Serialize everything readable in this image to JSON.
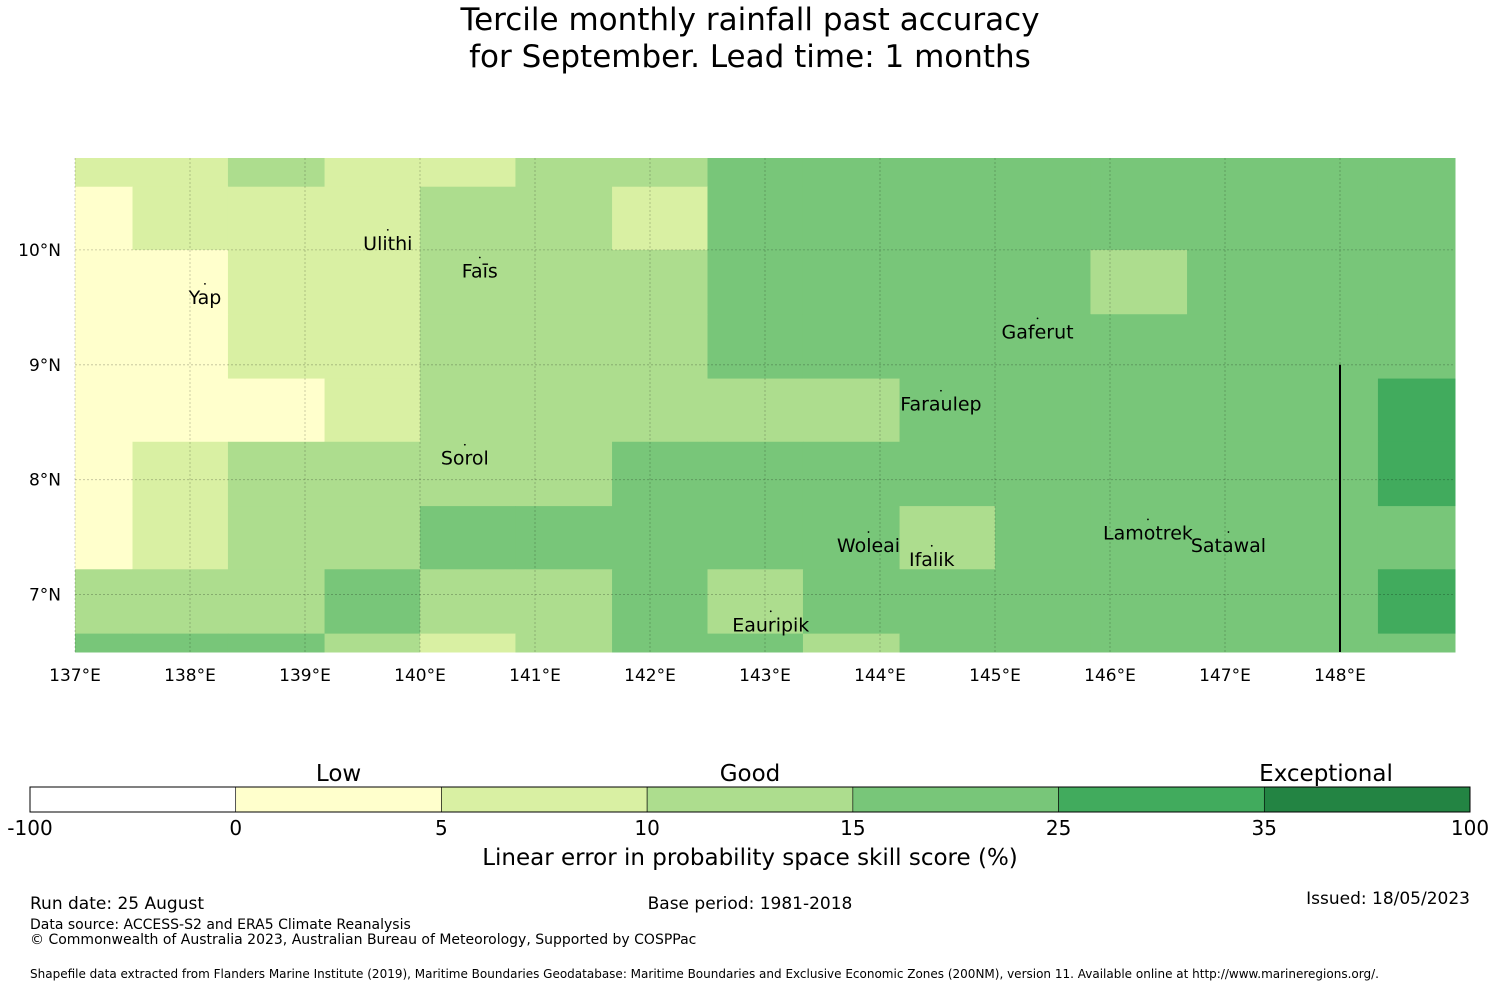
{
  "title": {
    "line1": "Tercile monthly rainfall past accuracy",
    "line2": "for September. Lead time: 1 months"
  },
  "colors": {
    "below_0": "#ffffff",
    "0_5": "#ffffcc",
    "5_10": "#d9f0a3",
    "10_15": "#addd8e",
    "15_25": "#78c679",
    "25_35": "#41ab5d",
    "35_100": "#238443"
  },
  "chart_data": {
    "type": "heatmap",
    "lon_range": [
      137.0,
      149.0
    ],
    "lat_range": [
      6.5,
      10.8
    ],
    "x_ticks": [
      "137°E",
      "138°E",
      "139°E",
      "140°E",
      "141°E",
      "142°E",
      "143°E",
      "144°E",
      "145°E",
      "146°E",
      "147°E",
      "148°E"
    ],
    "y_ticks": [
      "10°N",
      "9°N",
      "8°N",
      "7°N"
    ],
    "grid": true,
    "columns_lon": [
      137.0,
      137.5,
      138.33,
      139.17,
      140.0,
      140.83,
      141.67,
      142.5,
      143.33,
      144.17,
      145.0,
      145.83,
      146.67,
      147.5,
      148.33,
      149.0
    ],
    "rows_lat": [
      10.8,
      10.55,
      10.0,
      9.44,
      8.88,
      8.33,
      7.77,
      7.22,
      6.66,
      6.5
    ],
    "cells": [
      [
        "5_10",
        "5_10",
        "10_15",
        "5_10",
        "5_10",
        "10_15",
        "10_15",
        "15_25",
        "15_25",
        "15_25",
        "15_25",
        "15_25",
        "15_25",
        "15_25",
        "15_25"
      ],
      [
        "0_5",
        "5_10",
        "5_10",
        "5_10",
        "10_15",
        "10_15",
        "5_10",
        "15_25",
        "15_25",
        "15_25",
        "15_25",
        "15_25",
        "15_25",
        "15_25",
        "15_25"
      ],
      [
        "0_5",
        "0_5",
        "5_10",
        "5_10",
        "10_15",
        "10_15",
        "10_15",
        "15_25",
        "15_25",
        "15_25",
        "15_25",
        "10_15",
        "15_25",
        "15_25",
        "15_25"
      ],
      [
        "0_5",
        "0_5",
        "5_10",
        "5_10",
        "10_15",
        "10_15",
        "10_15",
        "15_25",
        "15_25",
        "15_25",
        "15_25",
        "15_25",
        "15_25",
        "15_25",
        "15_25"
      ],
      [
        "0_5",
        "0_5",
        "0_5",
        "5_10",
        "10_15",
        "10_15",
        "10_15",
        "10_15",
        "10_15",
        "15_25",
        "15_25",
        "15_25",
        "15_25",
        "15_25",
        "25_35"
      ],
      [
        "0_5",
        "5_10",
        "10_15",
        "10_15",
        "10_15",
        "10_15",
        "15_25",
        "15_25",
        "15_25",
        "15_25",
        "15_25",
        "15_25",
        "15_25",
        "15_25",
        "25_35"
      ],
      [
        "0_5",
        "5_10",
        "10_15",
        "10_15",
        "15_25",
        "15_25",
        "15_25",
        "15_25",
        "15_25",
        "10_15",
        "15_25",
        "15_25",
        "15_25",
        "15_25",
        "15_25"
      ],
      [
        "10_15",
        "10_15",
        "10_15",
        "15_25",
        "10_15",
        "10_15",
        "15_25",
        "10_15",
        "15_25",
        "15_25",
        "15_25",
        "15_25",
        "15_25",
        "15_25",
        "25_35"
      ],
      [
        "15_25",
        "15_25",
        "15_25",
        "10_15",
        "5_10",
        "10_15",
        "15_25",
        "15_25",
        "10_15",
        "15_25",
        "15_25",
        "15_25",
        "15_25",
        "15_25",
        "15_25"
      ]
    ],
    "boundary_line": {
      "lon": 148.0,
      "lat_from": 6.5,
      "lat_to": 9.0
    },
    "places": [
      {
        "name": "Ulithi",
        "lon": 139.72,
        "lat": 10.0
      },
      {
        "name": "Faīs",
        "lon": 140.52,
        "lat": 9.76
      },
      {
        "name": "Yap",
        "lon": 138.13,
        "lat": 9.53
      },
      {
        "name": "Gaferut",
        "lon": 145.37,
        "lat": 9.23
      },
      {
        "name": "Faraulep",
        "lon": 144.53,
        "lat": 8.6
      },
      {
        "name": "Sorol",
        "lon": 140.39,
        "lat": 8.13
      },
      {
        "name": "Woleai",
        "lon": 143.9,
        "lat": 7.37
      },
      {
        "name": "Ifalik",
        "lon": 144.45,
        "lat": 7.25
      },
      {
        "name": "Lamotrek",
        "lon": 146.33,
        "lat": 7.48
      },
      {
        "name": "Satawal",
        "lon": 147.03,
        "lat": 7.37
      },
      {
        "name": "Eauripik",
        "lon": 143.05,
        "lat": 6.68
      }
    ],
    "colorbar": {
      "ticks": [
        "-100",
        "0",
        "5",
        "10",
        "15",
        "25",
        "35",
        "100"
      ],
      "bins": [
        "below_0",
        "0_5",
        "5_10",
        "10_15",
        "15_25",
        "25_35",
        "35_100"
      ],
      "categories": [
        "Low",
        "Good",
        "Exceptional"
      ],
      "label": "Linear error in probability space skill score (%)"
    }
  },
  "footer": {
    "run_date": "Run date: 25 August",
    "base_period": "Base period: 1981-2018",
    "issued": "Issued: 18/05/2023",
    "data_source": "Data source: ACCESS-S2 and ERA5 Climate Reanalysis",
    "copyright": "© Commonwealth of Australia 2023, Australian Bureau of Meteorology, Supported by COSPPac",
    "shapefile": "Shapefile data extracted from Flanders Marine Institute (2019), Maritime Boundaries Geodatabase: Maritime Boundaries and Exclusive Economic Zones (200NM), version 11. Available online at http://www.marineregions.org/."
  }
}
